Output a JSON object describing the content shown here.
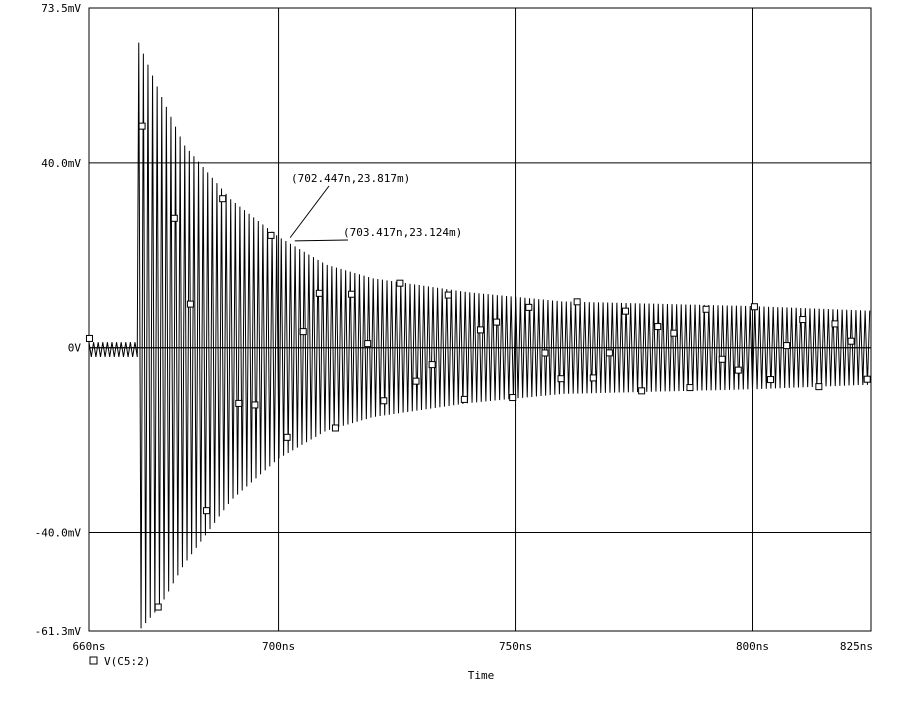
{
  "chart_data": {
    "type": "line",
    "xlabel": "Time",
    "ylabel": "",
    "xlim": [
      660,
      825
    ],
    "ylim": [
      -61.3,
      73.5
    ],
    "x_unit": "ns",
    "y_unit": "mV",
    "grid": true,
    "legend_position": "bottom-left",
    "x_ticks": [
      {
        "value": 660,
        "label": "660ns"
      },
      {
        "value": 700,
        "label": "700ns"
      },
      {
        "value": 750,
        "label": "750ns"
      },
      {
        "value": 800,
        "label": "800ns"
      },
      {
        "value": 825,
        "label": "825ns"
      }
    ],
    "y_ticks": [
      {
        "value": 73.5,
        "label": "73.5mV"
      },
      {
        "value": 40.0,
        "label": "40.0mV"
      },
      {
        "value": 0,
        "label": "0V"
      },
      {
        "value": -40.0,
        "label": "-40.0mV"
      },
      {
        "value": -61.3,
        "label": "-61.3mV"
      }
    ],
    "series": [
      {
        "name": "V(C5:2)",
        "marker": "square",
        "color": "#000000",
        "description_of_signal": {
          "pre_onset_ringing_amplitude_mV": 2,
          "onset_time_ns": 670.5,
          "peak_max_mV": 66,
          "peak_min_mV": -61.3,
          "steady_positive_peak_mV": 8,
          "steady_negative_peak_mV": -8,
          "oscillation_period_ns": 0.97
        },
        "envelope": [
          {
            "t": 670.5,
            "max": 66,
            "min": -61.3
          },
          {
            "t": 675,
            "max": 55,
            "min": -56
          },
          {
            "t": 680,
            "max": 44,
            "min": -47
          },
          {
            "t": 690,
            "max": 32,
            "min": -33
          },
          {
            "t": 700,
            "max": 24,
            "min": -24
          },
          {
            "t": 710,
            "max": 18,
            "min": -18
          },
          {
            "t": 720,
            "max": 15,
            "min": -15
          },
          {
            "t": 740,
            "max": 12,
            "min": -12
          },
          {
            "t": 760,
            "max": 10,
            "min": -10
          },
          {
            "t": 800,
            "max": 9,
            "min": -9
          },
          {
            "t": 825,
            "max": 8,
            "min": -8
          }
        ]
      }
    ],
    "annotations": [
      {
        "x": 702.447,
        "y": 23.817,
        "label": "(702.447n,23.817m)"
      },
      {
        "x": 703.417,
        "y": 23.124,
        "label": "(703.417n,23.124m)"
      }
    ]
  }
}
